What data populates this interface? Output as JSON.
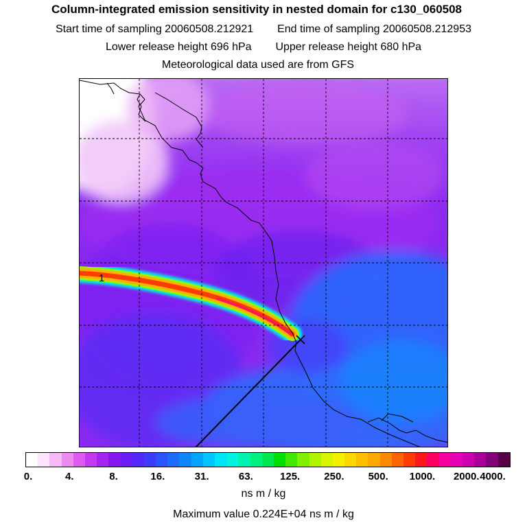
{
  "header": {
    "title": "Column-integrated emission sensitivity in nested domain for c130_060508",
    "start_label": "Start time of sampling",
    "start_value": "20060508.212921",
    "end_label": "End time of sampling",
    "end_value": "20060508.212953",
    "lower_label": "Lower release height",
    "lower_value": "696 hPa",
    "upper_label": "Upper release height",
    "upper_value": "680 hPa",
    "met_source": "Meteorological data used are from GFS"
  },
  "map": {
    "plume_label": "1",
    "release_marker": "release-point"
  },
  "colorbar": {
    "ticks": [
      "0.",
      "4.",
      "8.",
      "16.",
      "31.",
      "63.",
      "125.",
      "250.",
      "500.",
      "1000.",
      "2000.",
      "4000."
    ],
    "colors": [
      "#ffffff",
      "#fde4fd",
      "#f6baf6",
      "#ec8cf0",
      "#dc5cf0",
      "#c438f0",
      "#a424f0",
      "#8418f0",
      "#6a1cf4",
      "#5028f8",
      "#3c3cfc",
      "#2c54fc",
      "#1c6cfc",
      "#0c88fc",
      "#00a4fc",
      "#00c4fc",
      "#00e4f8",
      "#00f4e0",
      "#00f4b0",
      "#00f080",
      "#00e850",
      "#00e000",
      "#40e800",
      "#80f000",
      "#b0f400",
      "#d8f400",
      "#f4f000",
      "#fcd800",
      "#fcc000",
      "#fca800",
      "#fc8800",
      "#fc6400",
      "#fc3c00",
      "#fc1818",
      "#fc0060",
      "#f4009c",
      "#e400b4",
      "#cc00b0",
      "#a80098",
      "#840078",
      "#580048"
    ],
    "units": "ns m / kg",
    "max_label": "Maximum value",
    "max_value": "0.224E+04",
    "max_units": "ns m / kg"
  }
}
